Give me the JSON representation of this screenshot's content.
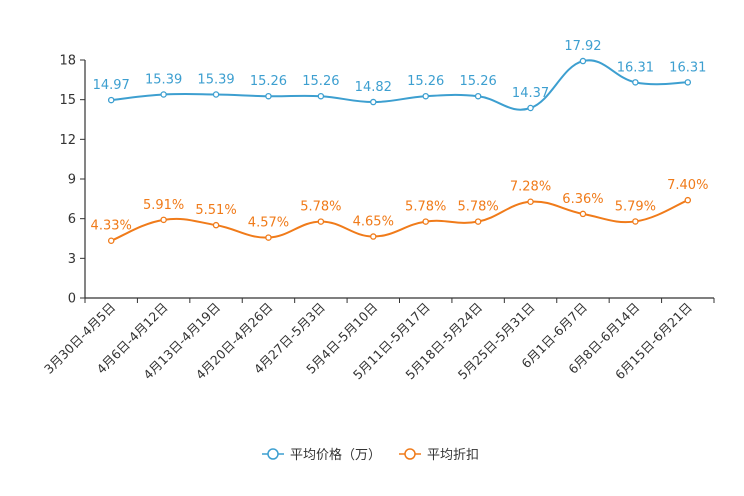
{
  "chart_data": {
    "type": "line",
    "title": "",
    "xlabel": "",
    "ylabel": "",
    "ylim": [
      0,
      18
    ],
    "yticks": [
      0,
      3,
      6,
      9,
      12,
      15,
      18
    ],
    "grid": false,
    "legend_position": "bottom-center",
    "categories": [
      "3月30日-4月5日",
      "4月6日-4月12日",
      "4月13日-4月19日",
      "4月20日-4月26日",
      "4月27日-5月3日",
      "5月4日-5月10日",
      "5月11日-5月17日",
      "5月18日-5月24日",
      "5月25日-5月31日",
      "6月1日-6月7日",
      "6月8日-6月14日",
      "6月15日-6月21日"
    ],
    "series": [
      {
        "name": "平均价格（万）",
        "color": "#3d9fd0",
        "values": [
          14.97,
          15.39,
          15.39,
          15.26,
          15.26,
          14.82,
          15.26,
          15.26,
          14.37,
          17.92,
          16.31,
          16.31
        ],
        "labels": [
          "14.97",
          "15.39",
          "15.39",
          "15.26",
          "15.26",
          "14.82",
          "15.26",
          "15.26",
          "14.37",
          "17.92",
          "16.31",
          "16.31"
        ]
      },
      {
        "name": "平均折扣",
        "color": "#f07b1a",
        "values": [
          4.33,
          5.91,
          5.51,
          4.57,
          5.78,
          4.65,
          5.78,
          5.78,
          7.28,
          6.36,
          5.79,
          7.4
        ],
        "labels": [
          "4.33%",
          "5.91%",
          "5.51%",
          "4.57%",
          "5.78%",
          "4.65%",
          "5.78%",
          "5.78%",
          "7.28%",
          "6.36%",
          "5.79%",
          "7.40%"
        ]
      }
    ]
  }
}
